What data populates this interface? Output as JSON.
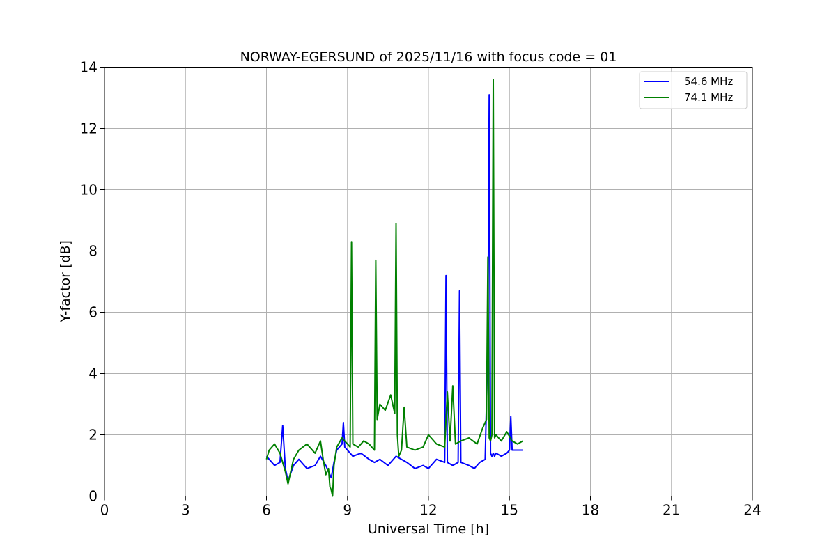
{
  "chart_data": {
    "type": "line",
    "title": "NORWAY-EGERSUND of 2025/11/16 with focus code = 01",
    "xlabel": "Universal Time [h]",
    "ylabel": "Y-factor [dB]",
    "xlim": [
      0,
      24
    ],
    "ylim": [
      0,
      14
    ],
    "xticks": [
      0,
      3,
      6,
      9,
      12,
      15,
      18,
      21,
      24
    ],
    "yticks": [
      0,
      2,
      4,
      6,
      8,
      10,
      12,
      14
    ],
    "grid": true,
    "legend_position": "top-right",
    "series": [
      {
        "name": "54.6 MHz",
        "color": "#0000ff",
        "x": [
          6.0,
          6.1,
          6.3,
          6.5,
          6.6,
          6.7,
          6.8,
          7.0,
          7.2,
          7.5,
          7.8,
          8.0,
          8.2,
          8.4,
          8.5,
          8.6,
          8.8,
          8.85,
          8.9,
          9.0,
          9.2,
          9.5,
          9.8,
          10.0,
          10.2,
          10.5,
          10.8,
          11.0,
          11.2,
          11.5,
          11.8,
          12.0,
          12.3,
          12.6,
          12.65,
          12.7,
          12.9,
          13.1,
          13.15,
          13.2,
          13.5,
          13.7,
          13.9,
          14.1,
          14.2,
          14.25,
          14.3,
          14.35,
          14.4,
          14.45,
          14.5,
          14.7,
          14.9,
          15.0,
          15.05,
          15.1,
          15.3,
          15.5
        ],
        "values": [
          1.3,
          1.2,
          1.0,
          1.1,
          2.3,
          0.9,
          0.5,
          1.0,
          1.2,
          0.9,
          1.0,
          1.3,
          1.0,
          0.6,
          1.1,
          1.5,
          1.7,
          2.4,
          1.6,
          1.5,
          1.3,
          1.4,
          1.2,
          1.1,
          1.2,
          1.0,
          1.3,
          1.2,
          1.1,
          0.9,
          1.0,
          0.9,
          1.2,
          1.1,
          7.2,
          1.1,
          1.0,
          1.1,
          6.7,
          1.1,
          1.0,
          0.9,
          1.1,
          1.2,
          5.0,
          13.1,
          1.4,
          1.3,
          1.4,
          1.3,
          1.4,
          1.3,
          1.4,
          1.5,
          2.6,
          1.5,
          1.5,
          1.5
        ]
      },
      {
        "name": "74.1 MHz",
        "color": "#008000",
        "x": [
          6.0,
          6.1,
          6.3,
          6.5,
          6.7,
          6.8,
          7.0,
          7.2,
          7.5,
          7.8,
          8.0,
          8.1,
          8.2,
          8.3,
          8.35,
          8.4,
          8.45,
          8.5,
          8.6,
          8.8,
          9.0,
          9.1,
          9.15,
          9.2,
          9.4,
          9.6,
          9.8,
          10.0,
          10.05,
          10.1,
          10.2,
          10.4,
          10.6,
          10.75,
          10.8,
          10.85,
          10.9,
          11.0,
          11.1,
          11.2,
          11.5,
          11.8,
          12.0,
          12.3,
          12.6,
          12.7,
          12.8,
          12.9,
          13.0,
          13.2,
          13.5,
          13.8,
          14.0,
          14.15,
          14.2,
          14.25,
          14.3,
          14.35,
          14.4,
          14.45,
          14.5,
          14.7,
          14.9,
          15.1,
          15.3,
          15.5
        ],
        "values": [
          1.2,
          1.5,
          1.7,
          1.4,
          0.8,
          0.4,
          1.2,
          1.5,
          1.7,
          1.4,
          1.8,
          1.2,
          0.7,
          0.9,
          0.3,
          0.2,
          0.0,
          1.0,
          1.6,
          1.9,
          1.7,
          1.6,
          8.3,
          1.7,
          1.6,
          1.8,
          1.7,
          1.5,
          7.7,
          2.5,
          3.0,
          2.8,
          3.3,
          2.7,
          8.9,
          2.0,
          1.3,
          1.5,
          2.9,
          1.6,
          1.5,
          1.6,
          2.0,
          1.7,
          1.6,
          3.4,
          1.8,
          3.6,
          1.7,
          1.8,
          1.9,
          1.7,
          2.2,
          2.5,
          7.8,
          1.9,
          1.8,
          2.0,
          13.6,
          1.9,
          2.0,
          1.8,
          2.1,
          1.8,
          1.7,
          1.8
        ]
      }
    ]
  }
}
